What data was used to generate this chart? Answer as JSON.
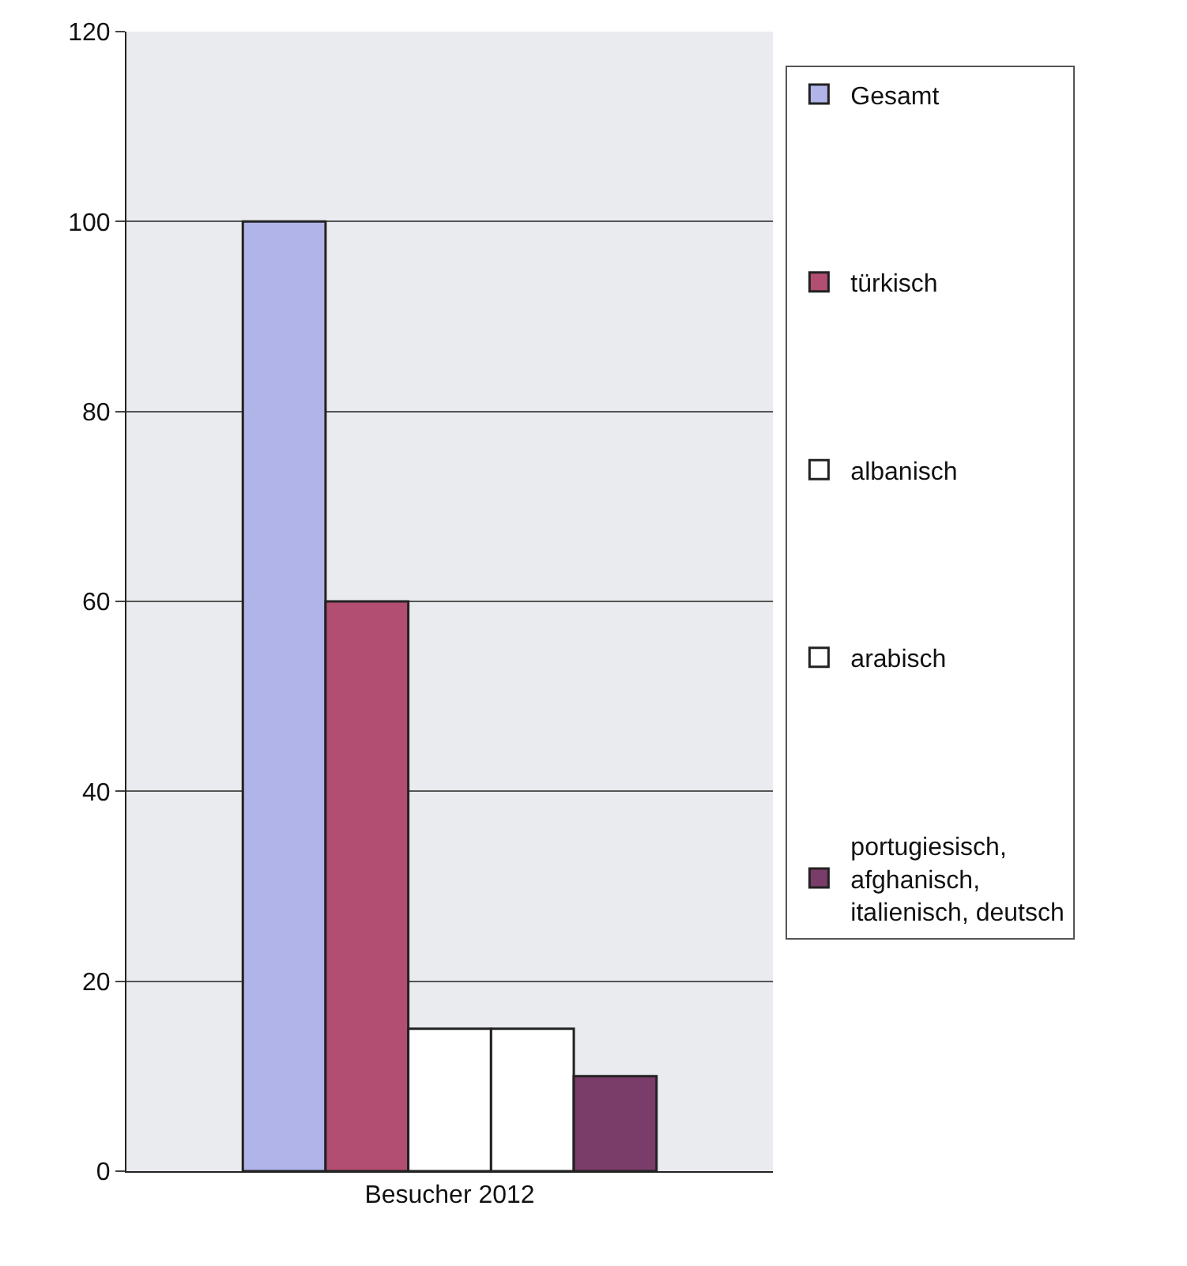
{
  "chart_data": {
    "type": "bar",
    "categories": [
      "Besucher 2012"
    ],
    "series": [
      {
        "name": "Gesamt",
        "color": "#b0b4e8",
        "values": [
          100
        ]
      },
      {
        "name": "türkisch",
        "color": "#b24e72",
        "values": [
          60
        ]
      },
      {
        "name": "albanisch",
        "color": "#ffffff",
        "values": [
          15
        ]
      },
      {
        "name": "arabisch",
        "color": "#ffffff",
        "values": [
          15
        ]
      },
      {
        "name": "portugiesisch, afghanisch, italienisch, deutsch",
        "color": "#7a3c68",
        "values": [
          10
        ]
      }
    ],
    "ylim": [
      0,
      120
    ],
    "yticks": [
      0,
      20,
      40,
      60,
      80,
      100,
      120
    ],
    "grid": "y",
    "legend": "right"
  }
}
